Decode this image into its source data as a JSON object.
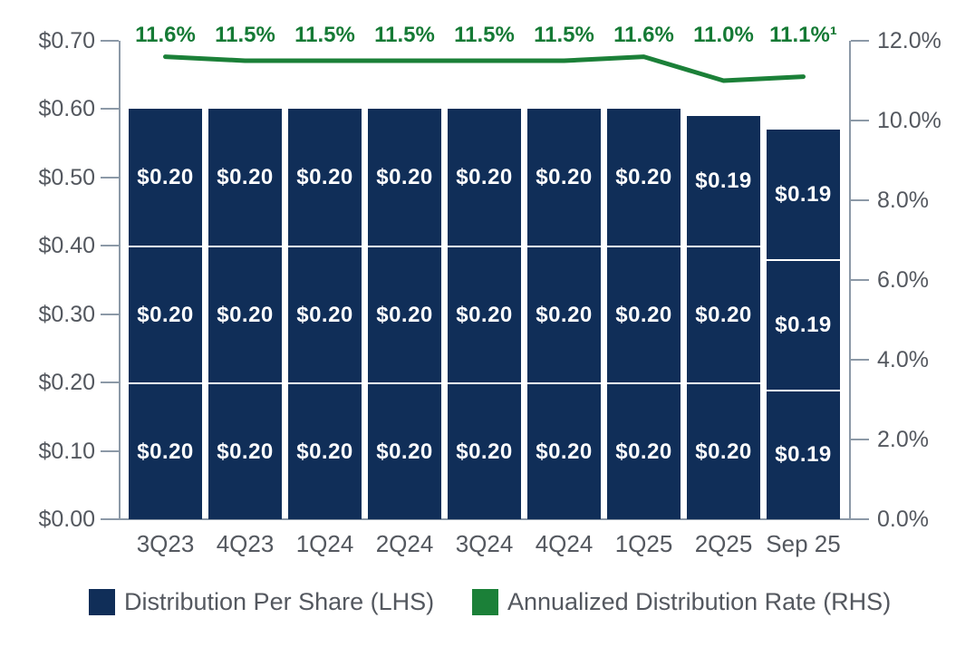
{
  "chart_data": {
    "type": "bar",
    "subtype": "stacked-bars-with-line-overlay-dual-axis",
    "title": "",
    "categories": [
      "3Q23",
      "4Q23",
      "1Q24",
      "2Q24",
      "3Q24",
      "4Q24",
      "1Q25",
      "2Q25",
      "Sep 25"
    ],
    "series": [
      {
        "name": "Distribution Per Share (LHS)",
        "type": "stacked-bar",
        "axis": "left",
        "segments_bottom_to_top": [
          [
            0.2,
            0.2,
            0.2
          ],
          [
            0.2,
            0.2,
            0.2
          ],
          [
            0.2,
            0.2,
            0.2
          ],
          [
            0.2,
            0.2,
            0.2
          ],
          [
            0.2,
            0.2,
            0.2
          ],
          [
            0.2,
            0.2,
            0.2
          ],
          [
            0.2,
            0.2,
            0.2
          ],
          [
            0.2,
            0.2,
            0.19
          ],
          [
            0.19,
            0.19,
            0.19
          ]
        ],
        "segment_labels_bottom_to_top": [
          [
            "$0.20",
            "$0.20",
            "$0.20"
          ],
          [
            "$0.20",
            "$0.20",
            "$0.20"
          ],
          [
            "$0.20",
            "$0.20",
            "$0.20"
          ],
          [
            "$0.20",
            "$0.20",
            "$0.20"
          ],
          [
            "$0.20",
            "$0.20",
            "$0.20"
          ],
          [
            "$0.20",
            "$0.20",
            "$0.20"
          ],
          [
            "$0.20",
            "$0.20",
            "$0.20"
          ],
          [
            "$0.20",
            "$0.20",
            "$0.19"
          ],
          [
            "$0.19",
            "$0.19",
            "$0.19"
          ]
        ],
        "totals": [
          0.6,
          0.6,
          0.6,
          0.6,
          0.6,
          0.6,
          0.6,
          0.59,
          0.57
        ]
      },
      {
        "name": "Annualized Distribution Rate (RHS)",
        "type": "line",
        "axis": "right",
        "values": [
          11.6,
          11.5,
          11.5,
          11.5,
          11.5,
          11.5,
          11.6,
          11.0,
          11.1
        ],
        "point_labels": [
          "11.6%",
          "11.5%",
          "11.5%",
          "11.5%",
          "11.5%",
          "11.5%",
          "11.6%",
          "11.0%",
          "11.1%¹"
        ]
      }
    ],
    "left_axis": {
      "min": 0,
      "max": 0.7,
      "tick_labels_bottom_to_top": [
        "$0.00",
        "$0.10",
        "$0.20",
        "$0.30",
        "$0.40",
        "$0.50",
        "$0.60",
        "$0.70"
      ]
    },
    "right_axis": {
      "min": 0,
      "max": 12,
      "tick_labels_bottom_to_top": [
        "0.0%",
        "2.0%",
        "4.0%",
        "6.0%",
        "8.0%",
        "10.0%",
        "12.0%"
      ]
    },
    "legend": [
      {
        "label": "Distribution Per Share (LHS)",
        "color": "#102E58"
      },
      {
        "label": "Annualized Distribution Rate (RHS)",
        "color": "#1B8038"
      }
    ],
    "colors": {
      "bar": "#102E58",
      "line": "#1B8038",
      "line_label_text": "#157A35",
      "axis": "#8C99A7",
      "tick_label_text": "#54585F",
      "category_label_text": "#54585F",
      "legend_text": "#54585F",
      "bar_value_label_text": "#FFFFFF",
      "segment_divider": "#FFFFFF",
      "background": "#FFFFFF"
    },
    "layout_hints": {
      "grid": "off",
      "legend_position": "bottom",
      "bar_value_labels": "centered-in-segment",
      "line_labels_position": "above-plot"
    }
  }
}
